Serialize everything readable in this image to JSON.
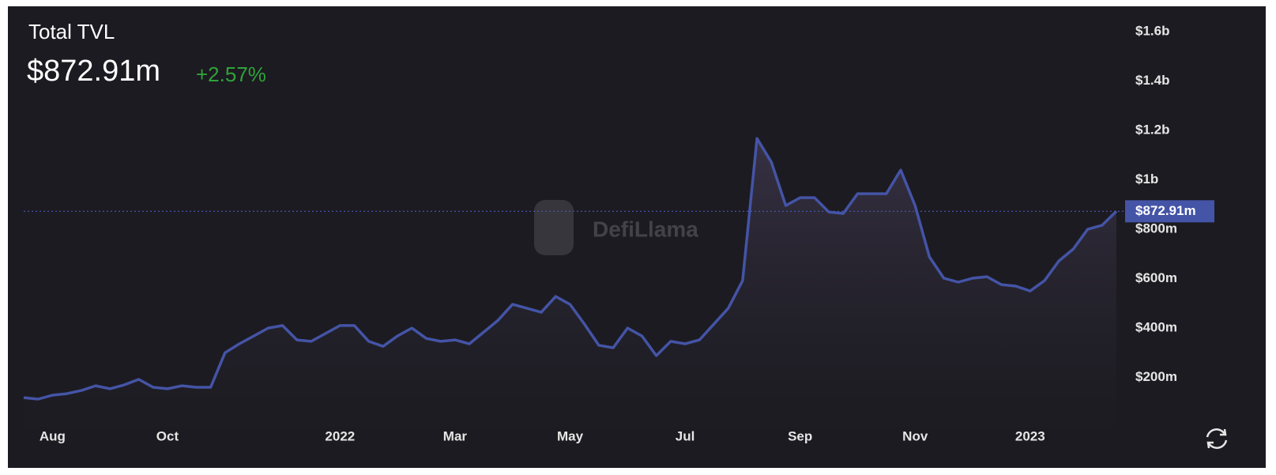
{
  "chart_data": {
    "type": "line",
    "title": "Total TVL",
    "headline": "$872.91m",
    "change": "+2.57%",
    "watermark": "DefiLlama",
    "categories": [
      null,
      null,
      "Aug",
      null,
      null,
      null,
      null,
      null,
      null,
      null,
      "Oct",
      null,
      null,
      null,
      null,
      null,
      null,
      null,
      null,
      null,
      null,
      null,
      "2022",
      null,
      null,
      null,
      null,
      null,
      null,
      null,
      "Mar",
      null,
      null,
      null,
      null,
      null,
      null,
      null,
      "May",
      null,
      null,
      null,
      null,
      null,
      null,
      null,
      "Jul",
      null,
      null,
      null,
      null,
      null,
      null,
      null,
      "Sep",
      null,
      null,
      null,
      null,
      null,
      null,
      null,
      "Nov",
      null,
      null,
      null,
      null,
      null,
      null,
      null,
      "2023",
      null,
      null,
      null,
      null,
      null,
      null
    ],
    "values": [
      118000000,
      112000000,
      128000000,
      134000000,
      147000000,
      166000000,
      154000000,
      170000000,
      192000000,
      160000000,
      154000000,
      166000000,
      160000000,
      160000000,
      300000000,
      336000000,
      368000000,
      400000000,
      410000000,
      352000000,
      346000000,
      378000000,
      410000000,
      410000000,
      346000000,
      326000000,
      368000000,
      400000000,
      358000000,
      346000000,
      352000000,
      336000000,
      384000000,
      432000000,
      496000000,
      480000000,
      464000000,
      528000000,
      496000000,
      416000000,
      330000000,
      320000000,
      400000000,
      368000000,
      288000000,
      346000000,
      336000000,
      352000000,
      416000000,
      480000000,
      592000000,
      1168000000,
      1072000000,
      896000000,
      928000000,
      928000000,
      870000000,
      864000000,
      944000000,
      944000000,
      944000000,
      1040000000,
      896000000,
      688000000,
      602000000,
      586000000,
      602000000,
      608000000,
      576000000,
      570000000,
      550000000,
      592000000,
      672000000,
      720000000,
      800000000,
      816000000,
      872910000
    ],
    "value_labels": [
      null,
      null,
      null,
      null,
      null,
      null,
      null,
      null,
      null,
      null,
      null,
      null,
      null,
      null,
      null,
      null,
      null,
      null,
      null,
      null,
      null,
      null,
      null,
      null,
      null,
      null,
      null,
      null,
      null,
      null,
      null,
      null,
      null,
      null,
      null,
      null,
      null,
      null,
      null,
      null,
      null,
      null,
      null,
      null,
      null,
      null,
      null,
      null,
      null,
      null,
      null,
      null,
      null,
      null,
      null,
      null,
      null,
      null,
      null,
      null,
      null,
      null,
      null,
      null,
      null,
      null,
      null,
      null,
      null,
      null,
      null,
      null,
      null,
      null,
      null,
      null,
      "$872.91m"
    ],
    "color": "#4454a6",
    "ylim": [
      0,
      1700000000
    ],
    "yticks": [
      {
        "value": 200000000,
        "label": "$200m"
      },
      {
        "value": 400000000,
        "label": "$400m"
      },
      {
        "value": 600000000,
        "label": "$600m"
      },
      {
        "value": 800000000,
        "label": "$800m"
      },
      {
        "value": 1000000000,
        "label": "$1b"
      },
      {
        "value": 1200000000,
        "label": "$1.2b"
      },
      {
        "value": 1400000000,
        "label": "$1.4b"
      },
      {
        "value": 1600000000,
        "label": "$1.6b"
      }
    ],
    "grid": false
  }
}
